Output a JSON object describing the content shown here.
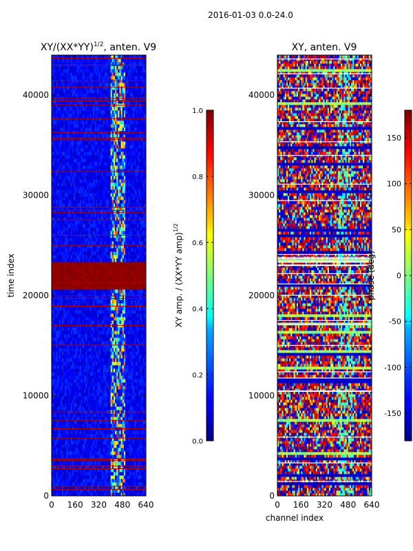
{
  "page": {
    "suptitle": "2016-01-03 0.0-24.0"
  },
  "chart_data": [
    {
      "type": "heatmap",
      "title": "XY/(XX*YY)",
      "title_exponent": "1/2",
      "title_suffix": ", anten. V9",
      "xlabel": "",
      "ylabel": "time index",
      "xlim": [
        0,
        640
      ],
      "ylim": [
        0,
        44000
      ],
      "xticks": [
        "0",
        "160",
        "320",
        "480",
        "640"
      ],
      "yticks": [
        "0",
        "10000",
        "20000",
        "30000",
        "40000"
      ],
      "ytick_values": [
        0,
        10000,
        20000,
        30000,
        40000
      ],
      "xtick_values": [
        0,
        160,
        320,
        480,
        640
      ],
      "colorbar": {
        "label": "XY amp. / (XX*YY amp)",
        "label_exponent": "1/2",
        "range": [
          0.0,
          1.0
        ],
        "ticks": [
          "0.0",
          "0.2",
          "0.4",
          "0.6",
          "0.8",
          "1.0"
        ],
        "tick_values": [
          0.0,
          0.2,
          0.4,
          0.6,
          0.8,
          1.0
        ]
      },
      "saturated_bands": [
        [
          20700,
          23300
        ]
      ],
      "rfi_channel_range": [
        400,
        500
      ]
    },
    {
      "type": "heatmap",
      "title": "XY, anten. V9",
      "title_exponent": "",
      "title_suffix": "",
      "xlabel": "channel index",
      "ylabel": "",
      "xlim": [
        0,
        640
      ],
      "ylim": [
        0,
        44000
      ],
      "xticks": [
        "0",
        "160",
        "320",
        "480",
        "640"
      ],
      "yticks": [
        "0",
        "10000",
        "20000",
        "30000",
        "40000"
      ],
      "ytick_values": [
        0,
        10000,
        20000,
        30000,
        40000
      ],
      "xtick_values": [
        0,
        160,
        320,
        480,
        640
      ],
      "colorbar": {
        "label": "phase (deg)",
        "label_exponent": "",
        "range": [
          -180,
          180
        ],
        "ticks": [
          "-150",
          "-100",
          "-50",
          "0",
          "50",
          "100",
          "150"
        ],
        "tick_values": [
          -150,
          -100,
          -50,
          0,
          50,
          100,
          150
        ]
      }
    }
  ],
  "colors": {
    "jet_dark_blue": "#00007f",
    "jet_blue": "#0000ff",
    "jet_cyan": "#00ffff",
    "jet_yellow": "#ffff00",
    "jet_red": "#ff0000",
    "jet_dark_red": "#7f0000"
  }
}
